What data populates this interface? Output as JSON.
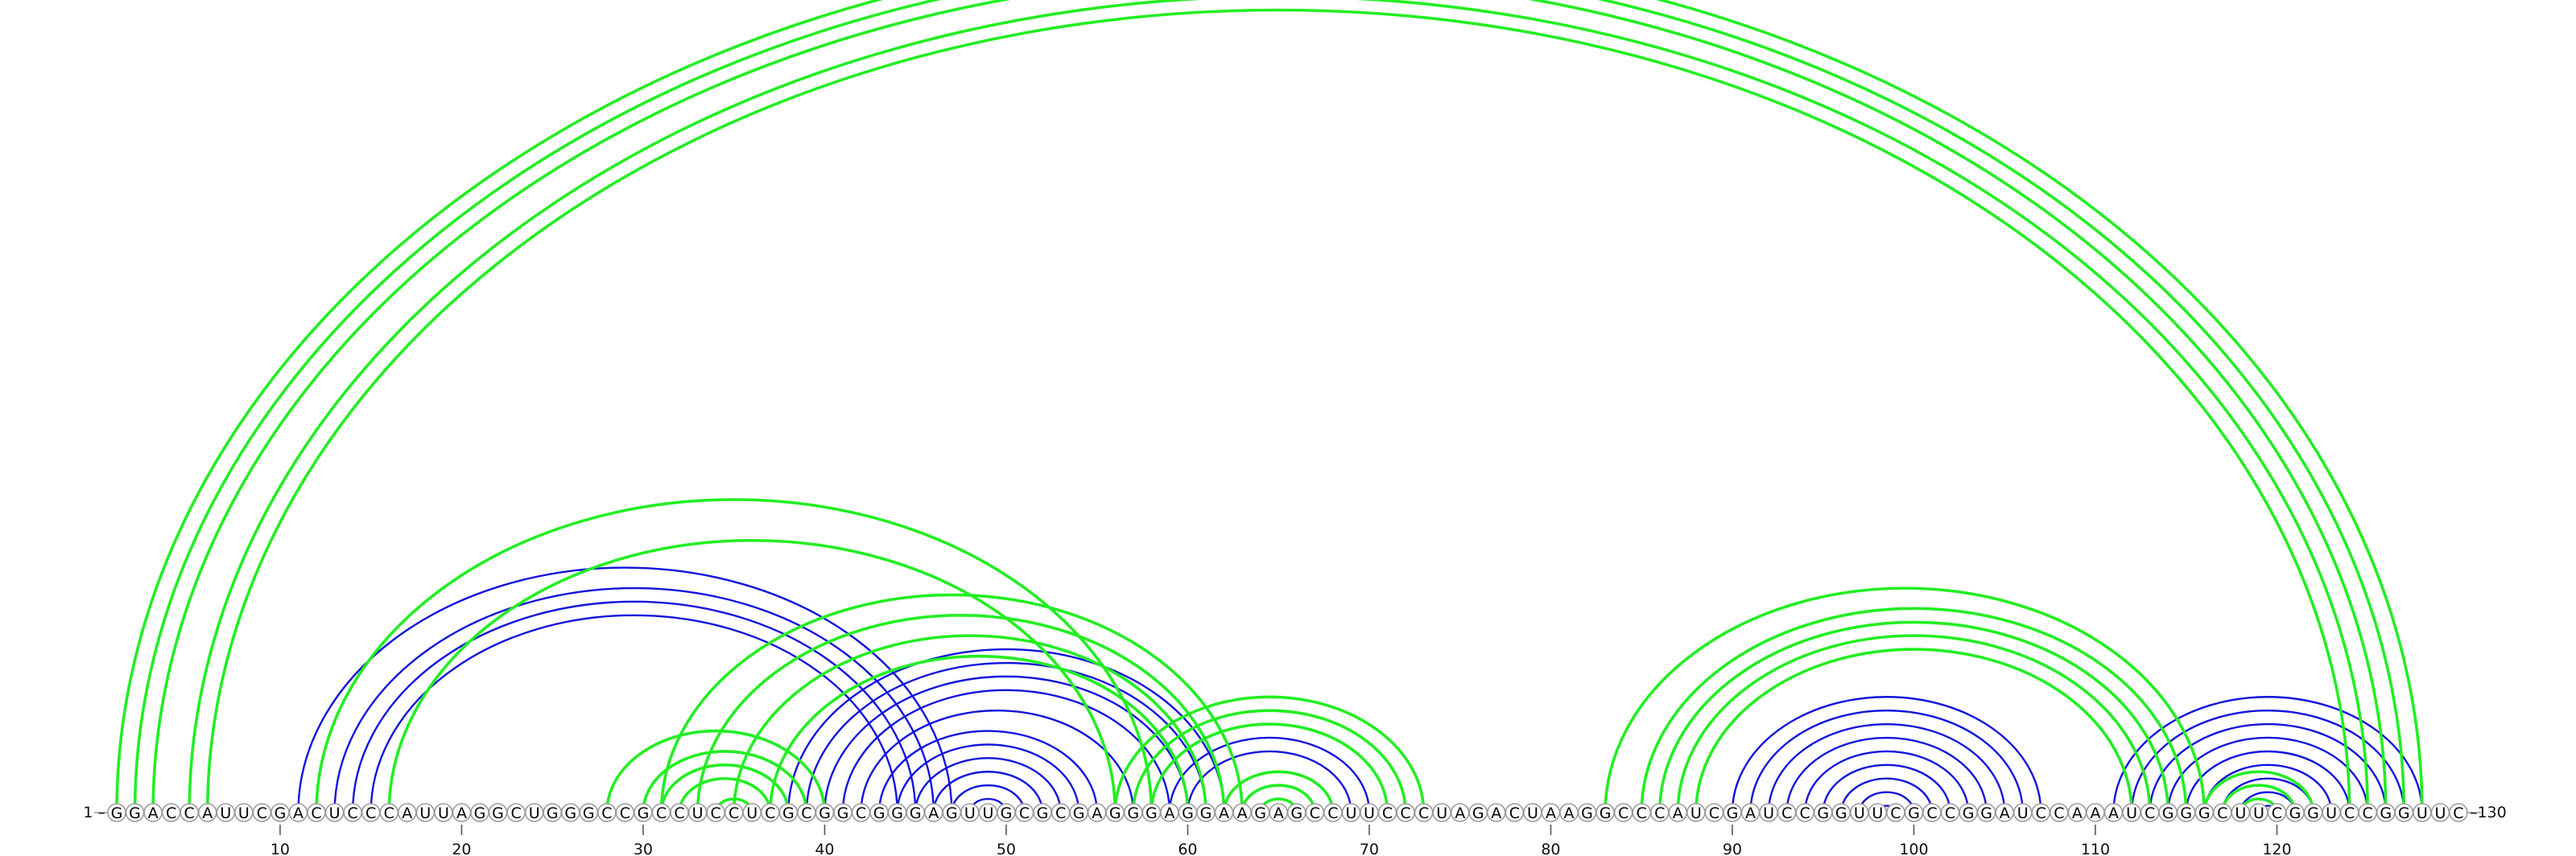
{
  "sequence": "GGACCAUUCGACUCCCAUUAGGCUGGGCCGCCUCCUCGCGGCGGGAGUUGCGCGAGGGAGGAAGAGCCUUCCCUAGACUAAGGCCCAUCGAUCCGGUUCGCCGGAUCCAAAUCGGGCUUCGGUCCGGUUC",
  "labels": {
    "start": "1 –",
    "end": "–130"
  },
  "ticks": [
    10,
    20,
    30,
    40,
    50,
    60,
    70,
    80,
    90,
    100,
    110,
    120
  ],
  "colors": {
    "green": "#22ee22",
    "blue": "#1111dd"
  },
  "arcs_green": [
    [
      1,
      128
    ],
    [
      2,
      127
    ],
    [
      3,
      126
    ],
    [
      5,
      125
    ],
    [
      6,
      124
    ],
    [
      12,
      58
    ],
    [
      16,
      56
    ],
    [
      28,
      40
    ],
    [
      30,
      39
    ],
    [
      31,
      38
    ],
    [
      32,
      37
    ],
    [
      34,
      36
    ],
    [
      31,
      63
    ],
    [
      33,
      62
    ],
    [
      35,
      61
    ],
    [
      37,
      60
    ],
    [
      56,
      73
    ],
    [
      57,
      72
    ],
    [
      58,
      71
    ],
    [
      62,
      68
    ],
    [
      64,
      66
    ],
    [
      63,
      67
    ],
    [
      83,
      116
    ],
    [
      85,
      115
    ],
    [
      86,
      114
    ],
    [
      87,
      113
    ],
    [
      88,
      112
    ],
    [
      116,
      122
    ],
    [
      117,
      121
    ],
    [
      118,
      120
    ]
  ],
  "arcs_blue": [
    [
      11,
      47
    ],
    [
      13,
      46
    ],
    [
      14,
      45
    ],
    [
      15,
      44
    ],
    [
      38,
      62
    ],
    [
      39,
      61
    ],
    [
      40,
      60
    ],
    [
      41,
      59
    ],
    [
      42,
      57
    ],
    [
      43,
      55
    ],
    [
      44,
      54
    ],
    [
      45,
      53
    ],
    [
      46,
      52
    ],
    [
      47,
      51
    ],
    [
      48,
      50
    ],
    [
      57,
      72
    ],
    [
      58,
      71
    ],
    [
      59,
      70
    ],
    [
      60,
      69
    ],
    [
      90,
      107
    ],
    [
      91,
      106
    ],
    [
      92,
      105
    ],
    [
      93,
      104
    ],
    [
      94,
      103
    ],
    [
      95,
      102
    ],
    [
      96,
      101
    ],
    [
      97,
      100
    ],
    [
      98,
      99
    ],
    [
      111,
      128
    ],
    [
      112,
      127
    ],
    [
      113,
      126
    ],
    [
      114,
      125
    ],
    [
      115,
      124
    ],
    [
      116,
      123
    ],
    [
      117,
      122
    ],
    [
      118,
      121
    ],
    [
      119,
      120
    ]
  ]
}
